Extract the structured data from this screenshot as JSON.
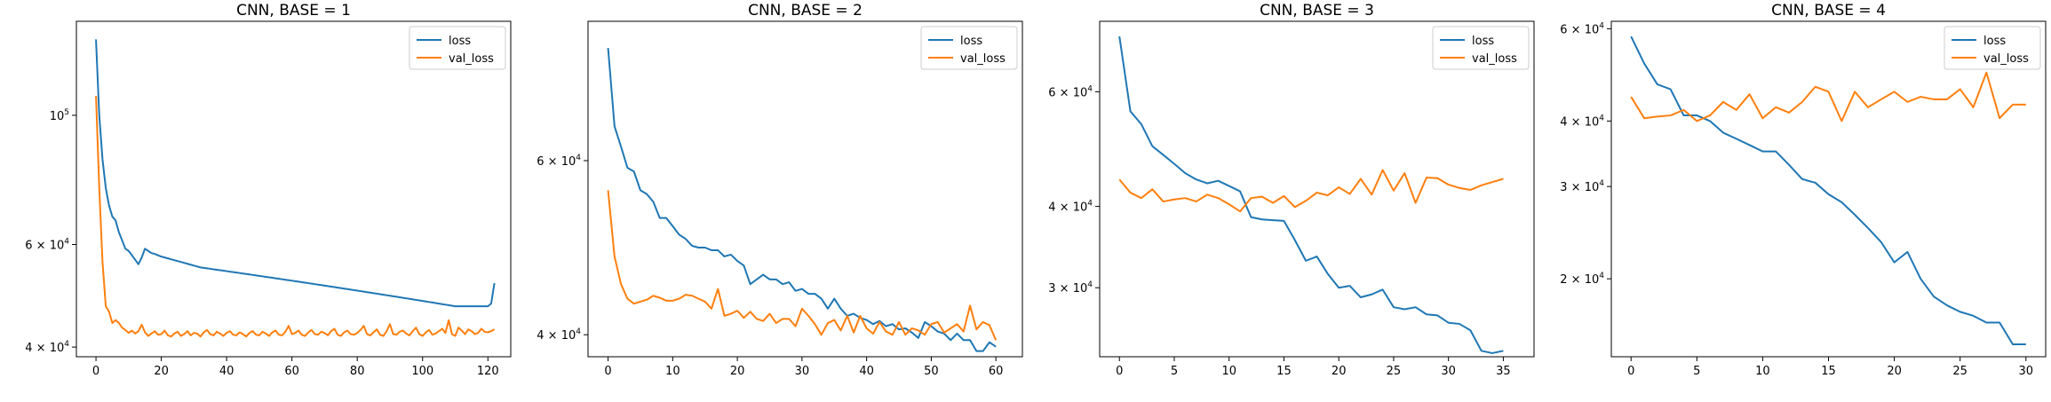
{
  "chart_data": [
    {
      "type": "line",
      "title": "CNN, BASE = 1",
      "yscale": "log",
      "xlim": [
        -6,
        127
      ],
      "ylim": [
        38500,
        145000
      ],
      "xticks": [
        0,
        20,
        40,
        60,
        80,
        100,
        120
      ],
      "yticks": [
        {
          "value": 40000,
          "mantissa": "4",
          "exp": "4"
        },
        {
          "value": 60000,
          "mantissa": "6",
          "exp": "4"
        },
        {
          "value": 100000,
          "mantissa": "",
          "exp": "5"
        }
      ],
      "legend_position": "top-right",
      "series": [
        {
          "name": "loss",
          "color": "#1f77b4",
          "x_step": 1,
          "values": [
            135000,
            100000,
            84000,
            75000,
            70000,
            67000,
            66000,
            63000,
            61000,
            59000,
            58500,
            57500,
            56500,
            55500,
            57000,
            59000,
            58500,
            58000,
            57800,
            57500,
            57200,
            57000,
            56800,
            56600,
            56400,
            56200,
            56000,
            55800,
            55600,
            55400,
            55200,
            55000,
            54800,
            54700,
            54600,
            54500,
            54400,
            54300,
            54200,
            54100,
            54000,
            53900,
            53800,
            53700,
            53600,
            53500,
            53400,
            53300,
            53200,
            53100,
            53000,
            52900,
            52800,
            52700,
            52600,
            52500,
            52400,
            52300,
            52200,
            52100,
            52000,
            51900,
            51800,
            51700,
            51600,
            51500,
            51400,
            51300,
            51200,
            51100,
            51000,
            50900,
            50800,
            50700,
            50600,
            50500,
            50400,
            50300,
            50200,
            50100,
            50000,
            49900,
            49800,
            49700,
            49600,
            49500,
            49400,
            49300,
            49200,
            49100,
            49000,
            48900,
            48800,
            48700,
            48600,
            48500,
            48400,
            48300,
            48200,
            48100,
            48000,
            47900,
            47800,
            47700,
            47600,
            47500,
            47400,
            47300,
            47200,
            47100,
            47000,
            47000,
            47000,
            47000,
            47000,
            47000,
            47000,
            47000,
            47000,
            47000,
            47000,
            47500,
            51500
          ]
        },
        {
          "name": "val_loss",
          "color": "#ff7f0e",
          "x_step": 1,
          "values": [
            108000,
            75000,
            56000,
            47000,
            46000,
            44000,
            44500,
            44000,
            43200,
            42800,
            42300,
            42700,
            42200,
            42600,
            43700,
            42400,
            41800,
            42200,
            42600,
            42000,
            42100,
            42700,
            41900,
            41700,
            42200,
            42500,
            41800,
            42100,
            42600,
            41900,
            42300,
            42200,
            41700,
            42400,
            42800,
            42100,
            41900,
            42500,
            42200,
            41800,
            42300,
            42600,
            42000,
            41900,
            42400,
            42100,
            41700,
            42300,
            42600,
            42000,
            41900,
            42500,
            42200,
            41800,
            42400,
            42700,
            42000,
            41900,
            42500,
            43500,
            42100,
            42300,
            42700,
            42000,
            41800,
            42400,
            42800,
            42100,
            42000,
            42500,
            42300,
            41900,
            42600,
            43000,
            42000,
            41800,
            42400,
            42700,
            42100,
            42000,
            42300,
            42800,
            43500,
            42100,
            41900,
            42400,
            42900,
            42000,
            41800,
            42600,
            43800,
            42100,
            42000,
            42500,
            42700,
            42200,
            41900,
            42600,
            43200,
            42100,
            41800,
            42400,
            42800,
            42000,
            42200,
            42600,
            43000,
            42300,
            44500,
            42100,
            41800,
            43200,
            42700,
            42100,
            42900,
            42600,
            42100,
            42300,
            43000,
            42500,
            42400,
            42600,
            42900
          ]
        }
      ]
    },
    {
      "type": "line",
      "title": "CNN, BASE = 2",
      "yscale": "log",
      "xlim": [
        -3.1,
        64.1
      ],
      "ylim": [
        38000,
        83000
      ],
      "xticks": [
        0,
        10,
        20,
        30,
        40,
        50,
        60
      ],
      "yticks": [
        {
          "value": 40000,
          "mantissa": "4",
          "exp": "4"
        },
        {
          "value": 60000,
          "mantissa": "6",
          "exp": "4"
        }
      ],
      "legend_position": "top-right",
      "series": [
        {
          "name": "loss",
          "color": "#1f77b4",
          "x_step": 1,
          "values": [
            78000,
            65000,
            62000,
            59000,
            58500,
            56000,
            55500,
            54500,
            52500,
            52500,
            51500,
            50500,
            50000,
            49200,
            49000,
            49000,
            48700,
            48700,
            48000,
            48200,
            47500,
            47000,
            45000,
            45500,
            46000,
            45500,
            45500,
            45000,
            45200,
            44300,
            44500,
            44000,
            44000,
            43500,
            42500,
            43500,
            42500,
            41800,
            42000,
            41600,
            41400,
            41000,
            41300,
            40800,
            41000,
            40500,
            40600,
            40200,
            39700,
            41200,
            40800,
            40300,
            40100,
            39500,
            40100,
            39500,
            39500,
            38500,
            38500,
            39300,
            38900
          ]
        },
        {
          "name": "val_loss",
          "color": "#ff7f0e",
          "x_step": 1,
          "values": [
            56000,
            48000,
            45000,
            43500,
            43000,
            43200,
            43400,
            43800,
            43600,
            43300,
            43300,
            43500,
            43900,
            43800,
            43500,
            43200,
            42500,
            44500,
            41800,
            42000,
            42300,
            41600,
            42200,
            41500,
            41300,
            42000,
            41100,
            41500,
            41500,
            40800,
            42500,
            41800,
            41000,
            40000,
            41100,
            41400,
            40400,
            41800,
            40200,
            41800,
            40600,
            40100,
            41200,
            40300,
            40000,
            41200,
            40000,
            40600,
            40400,
            40000,
            41000,
            41200,
            40200,
            40600,
            41000,
            40300,
            42800,
            40500,
            41200,
            40900,
            39500
          ]
        }
      ]
    },
    {
      "type": "line",
      "title": "CNN, BASE = 3",
      "yscale": "log",
      "xlim": [
        -1.8,
        37.8
      ],
      "ylim": [
        23500,
        77000
      ],
      "xticks": [
        0,
        5,
        10,
        15,
        20,
        25,
        30,
        35
      ],
      "yticks": [
        {
          "value": 30000,
          "mantissa": "3",
          "exp": "4"
        },
        {
          "value": 40000,
          "mantissa": "4",
          "exp": "4"
        },
        {
          "value": 60000,
          "mantissa": "6",
          "exp": "4"
        }
      ],
      "legend_position": "top-right",
      "series": [
        {
          "name": "loss",
          "color": "#1f77b4",
          "x_step": 1,
          "values": [
            73000,
            56000,
            53500,
            49500,
            48000,
            46500,
            45000,
            44000,
            43400,
            43800,
            43000,
            42200,
            38500,
            38200,
            38100,
            38000,
            35500,
            33000,
            33500,
            31500,
            30000,
            30200,
            29000,
            29300,
            29800,
            28000,
            27800,
            28000,
            27300,
            27200,
            26500,
            26400,
            25800,
            24000,
            23800,
            24000
          ]
        },
        {
          "name": "val_loss",
          "color": "#ff7f0e",
          "x_step": 1,
          "values": [
            44000,
            42000,
            41200,
            42500,
            40700,
            41000,
            41200,
            40700,
            41700,
            41200,
            40300,
            39300,
            41200,
            41400,
            40500,
            41500,
            39900,
            40800,
            42000,
            41600,
            42800,
            41800,
            44100,
            41700,
            45500,
            42300,
            45000,
            40500,
            44300,
            44200,
            43200,
            42700,
            42400,
            43100,
            43600,
            44100
          ]
        }
      ]
    },
    {
      "type": "line",
      "title": "CNN, BASE = 4",
      "yscale": "log",
      "xlim": [
        -1.5,
        31.5
      ],
      "ylim": [
        14200,
        62000
      ],
      "xticks": [
        0,
        5,
        10,
        15,
        20,
        25,
        30
      ],
      "yticks": [
        {
          "value": 20000,
          "mantissa": "2",
          "exp": "4"
        },
        {
          "value": 30000,
          "mantissa": "3",
          "exp": "4"
        },
        {
          "value": 40000,
          "mantissa": "4",
          "exp": "4"
        },
        {
          "value": 60000,
          "mantissa": "6",
          "exp": "4"
        }
      ],
      "legend_position": "top-right",
      "series": [
        {
          "name": "loss",
          "color": "#1f77b4",
          "x_step": 1,
          "values": [
            58000,
            51500,
            47000,
            46000,
            41000,
            41000,
            40000,
            38000,
            37000,
            36000,
            35000,
            35000,
            33000,
            31000,
            30500,
            29000,
            28000,
            26500,
            25000,
            23500,
            21500,
            22500,
            20000,
            18500,
            17800,
            17300,
            17000,
            16500,
            16500,
            15000,
            15000
          ]
        },
        {
          "name": "val_loss",
          "color": "#ff7f0e",
          "x_step": 1,
          "values": [
            44500,
            40500,
            40800,
            41000,
            42000,
            40000,
            41000,
            43500,
            42000,
            45000,
            40500,
            42500,
            41500,
            43500,
            46500,
            45500,
            40000,
            45500,
            42500,
            44000,
            45500,
            43500,
            44500,
            44000,
            44000,
            46000,
            42500,
            49500,
            40500,
            43000,
            43000
          ]
        }
      ]
    }
  ]
}
